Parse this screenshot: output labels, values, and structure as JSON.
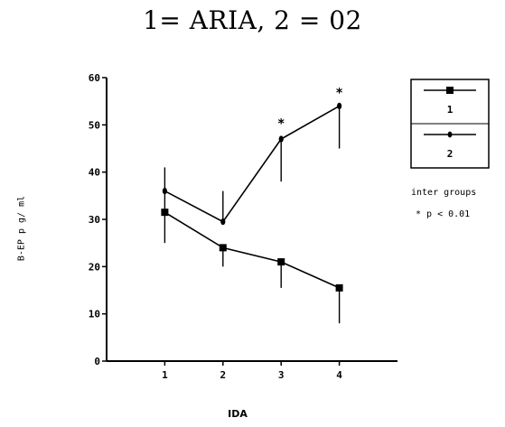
{
  "chart_data": {
    "type": "line",
    "title": "1= ARIA, 2 = 02",
    "xlabel": "IDA",
    "ylabel": "B-EP p g/ ml",
    "x": [
      1,
      2,
      3,
      4
    ],
    "xlim": [
      0,
      5
    ],
    "ylim": [
      0,
      60
    ],
    "y_ticks": [
      0,
      10,
      20,
      30,
      40,
      50,
      60
    ],
    "x_ticks": [
      1,
      2,
      3,
      4
    ],
    "grid": false,
    "legend_position": "right",
    "series": [
      {
        "name": "1",
        "marker": "square",
        "values": [
          31.5,
          24,
          21,
          15.5
        ],
        "error_high": [
          31.5,
          24,
          21,
          15.5
        ],
        "error_low": [
          25,
          20,
          15.5,
          8
        ]
      },
      {
        "name": "2",
        "marker": "diamond",
        "values": [
          36,
          29.5,
          47,
          54
        ],
        "error_high": [
          41,
          36,
          47,
          54
        ],
        "error_low": [
          31,
          29.5,
          38,
          45
        ]
      }
    ],
    "significance": {
      "title": "inter groups",
      "note": "* p < 0.01",
      "marked_x": [
        3,
        4
      ],
      "marked_y": [
        50.5,
        57
      ]
    }
  }
}
